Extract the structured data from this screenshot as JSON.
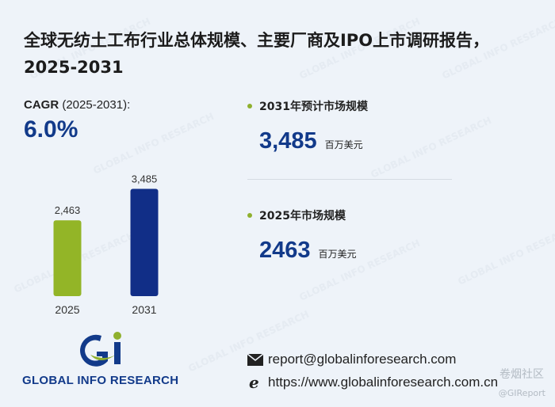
{
  "title": "全球无纺土工布行业总体规模、主要厂商及IPO上市调研报告，2025-2031",
  "cagr": {
    "label_bold": "CAGR",
    "label_rest": " (2025-2031):",
    "value": "6.0%"
  },
  "stats": [
    {
      "label": "2031年预计市场规模",
      "value": "3,485",
      "unit": "百万美元"
    },
    {
      "label": "2025年市场规模",
      "value": "2463",
      "unit": "百万美元"
    }
  ],
  "colors": {
    "accent_blue": "#123a8a",
    "accent_green": "#8fb02e",
    "bar_2025": "#93b527",
    "bar_2031": "#112e87"
  },
  "chart_data": {
    "type": "bar",
    "categories": [
      "2025",
      "2031"
    ],
    "values": [
      2463,
      3485
    ],
    "value_labels": [
      "2,463",
      "3,485"
    ],
    "title": "",
    "xlabel": "",
    "ylabel": "",
    "ylim": [
      0,
      3600
    ],
    "grid": false,
    "legend": "none"
  },
  "logo": {
    "text": "GLOBAL INFO RESEARCH"
  },
  "contact": {
    "email": "report@globalinforesearch.com",
    "website": "https://www.globalinforesearch.com.cn"
  },
  "watermarks": {
    "community": "卷烟社区",
    "handle": "@GIReport"
  },
  "icons": {
    "email": "envelope-icon",
    "website": "browser-e-icon",
    "bullet": "dot-icon"
  }
}
